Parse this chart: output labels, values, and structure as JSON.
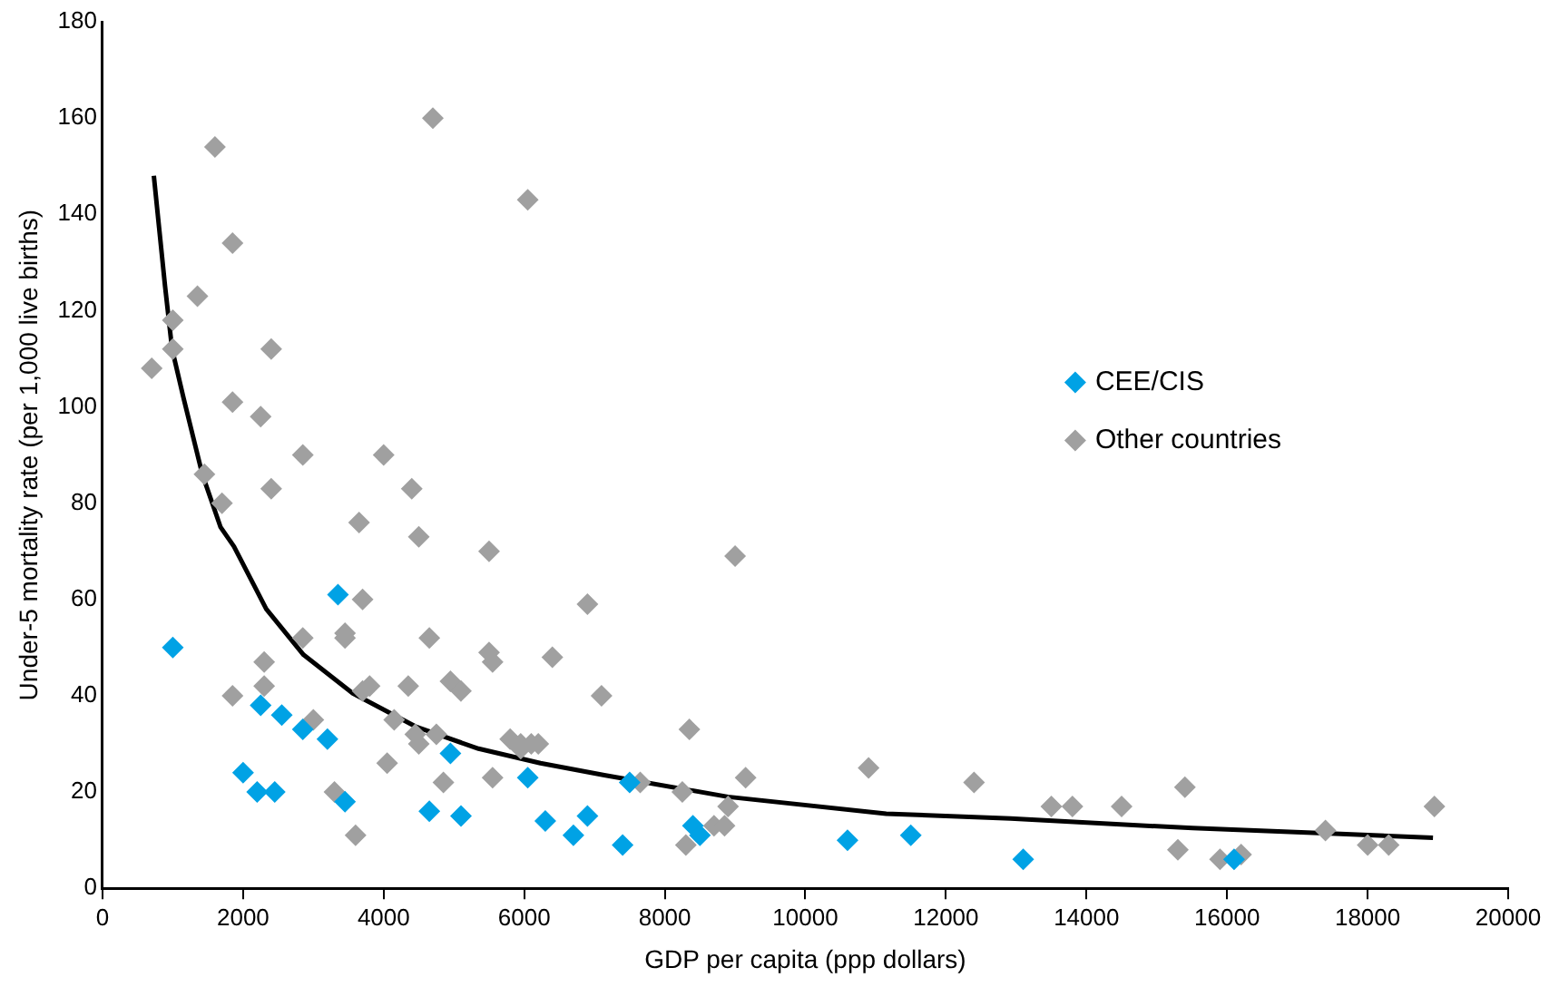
{
  "chart_data": {
    "type": "scatter",
    "xlabel": "GDP per capita (ppp dollars)",
    "ylabel": "Under-5 mortality rate (per 1,000 live births)",
    "xlim": [
      0,
      20000
    ],
    "xticks": [
      0,
      2000,
      4000,
      6000,
      8000,
      10000,
      12000,
      14000,
      16000,
      18000,
      20000
    ],
    "ylim": [
      0,
      180
    ],
    "yticks": [
      0,
      20,
      40,
      60,
      80,
      100,
      120,
      140,
      160,
      180
    ],
    "grid": false,
    "legend": "right",
    "marker": "diamond",
    "series": [
      {
        "name": "CEE/CIS",
        "color": "#00a2e5",
        "x": [
          1000,
          2000,
          2200,
          2250,
          2450,
          2550,
          2850,
          3200,
          3350,
          3450,
          4650,
          4950,
          5100,
          6050,
          6300,
          6700,
          6900,
          7400,
          7500,
          8400,
          8500,
          10600,
          11500,
          13100,
          16100
        ],
        "values": [
          50,
          24,
          20,
          38,
          20,
          36,
          33,
          31,
          61,
          18,
          16,
          28,
          15,
          23,
          14,
          11,
          15,
          9,
          22,
          13,
          11,
          10,
          11,
          6,
          6
        ]
      },
      {
        "name": "Other countries",
        "color": "#a0a0a0",
        "x": [
          700,
          1000,
          1000,
          1350,
          1450,
          1600,
          1700,
          1850,
          1850,
          1850,
          2250,
          2300,
          2300,
          2400,
          2400,
          2850,
          2850,
          3000,
          3300,
          3450,
          3450,
          3600,
          3650,
          3700,
          3700,
          3800,
          4000,
          4050,
          4150,
          4350,
          4400,
          4450,
          4500,
          4500,
          4700,
          4650,
          4750,
          4850,
          4950,
          5100,
          5500,
          5500,
          5550,
          5550,
          5800,
          5950,
          6050,
          5950,
          6100,
          6200,
          6400,
          6900,
          7100,
          7650,
          8250,
          8300,
          8350,
          8700,
          8850,
          8900,
          9000,
          9150,
          10900,
          12400,
          13500,
          13800,
          14500,
          15300,
          15400,
          15900,
          16200,
          17400,
          18000,
          18300,
          18950
        ],
        "values": [
          108,
          112,
          118,
          123,
          86,
          154,
          80,
          134,
          101,
          40,
          98,
          47,
          42,
          112,
          83,
          90,
          52,
          35,
          20,
          53,
          52,
          11,
          76,
          60,
          41,
          42,
          90,
          26,
          35,
          42,
          83,
          32,
          73,
          30,
          160,
          52,
          32,
          22,
          43,
          41,
          70,
          49,
          47,
          23,
          31,
          29,
          143,
          30,
          30,
          30,
          48,
          59,
          40,
          22,
          20,
          9,
          33,
          13,
          13,
          17,
          69,
          23,
          25,
          22,
          17,
          17,
          17,
          8,
          21,
          6,
          7,
          12,
          9,
          9,
          17
        ]
      },
      {
        "type": "line",
        "color": "#000000",
        "marker": "none",
        "x": [
          730,
          890,
          990,
          1150,
          1420,
          1680,
          1870,
          2330,
          2860,
          3560,
          4470,
          5350,
          6230,
          7140,
          8900,
          11150,
          12920,
          15510,
          17300,
          18930
        ],
        "values": [
          148,
          125,
          112,
          102,
          86,
          75,
          71,
          58,
          48.5,
          40.5,
          33.5,
          29,
          26,
          23.5,
          19,
          15.5,
          14.5,
          12.5,
          11.5,
          10.5
        ]
      }
    ]
  }
}
